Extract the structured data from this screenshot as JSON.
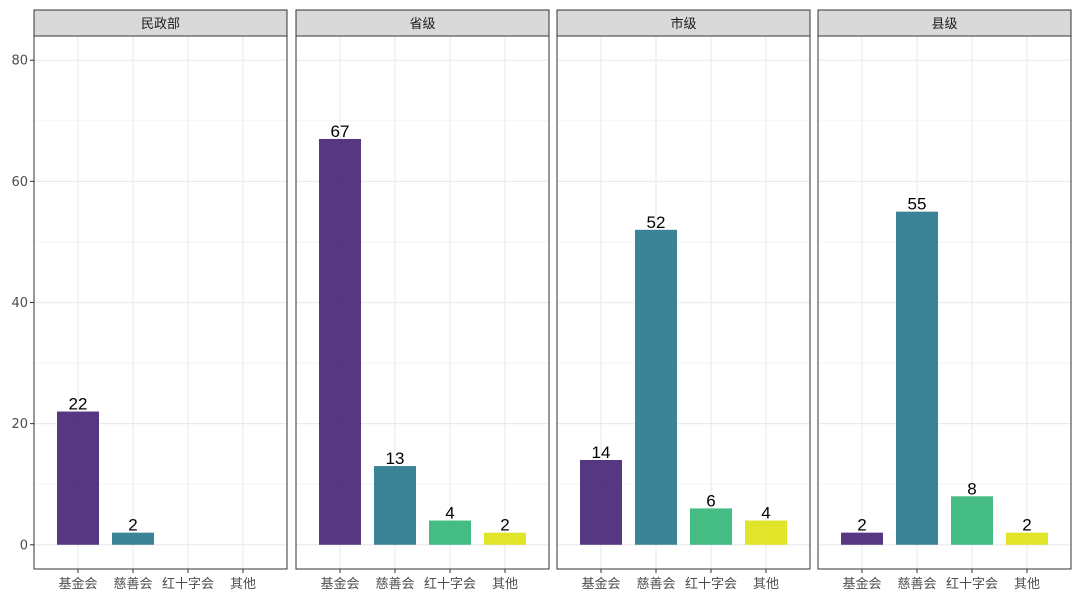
{
  "chart_data": {
    "type": "bar",
    "facet": true,
    "categories": [
      "基金会",
      "慈善会",
      "红十字会",
      "其他"
    ],
    "category_colors": [
      "#482677",
      "#2A788E",
      "#34B679",
      "#DDE318"
    ],
    "y_ticks": [
      0,
      20,
      40,
      60,
      80
    ],
    "ylim": [
      -4,
      84
    ],
    "grid": true,
    "panels": [
      {
        "title": "民政部",
        "values": [
          22,
          2,
          null,
          null
        ]
      },
      {
        "title": "省级",
        "values": [
          67,
          13,
          4,
          2
        ]
      },
      {
        "title": "市级",
        "values": [
          14,
          52,
          6,
          4
        ]
      },
      {
        "title": "县级",
        "values": [
          2,
          55,
          8,
          2
        ]
      }
    ]
  }
}
